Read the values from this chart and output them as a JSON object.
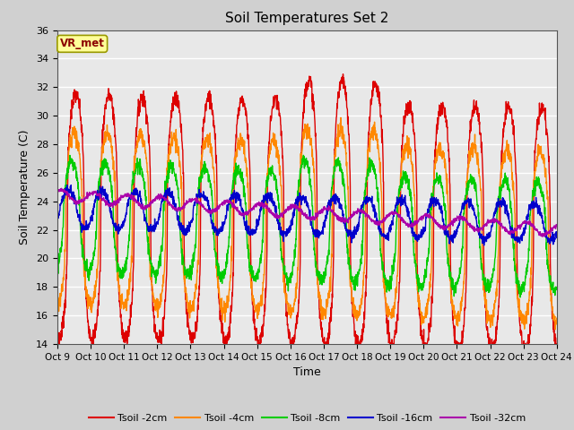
{
  "title": "Soil Temperatures Set 2",
  "xlabel": "Time",
  "ylabel": "Soil Temperature (C)",
  "ylim": [
    14,
    36
  ],
  "yticks": [
    14,
    16,
    18,
    20,
    22,
    24,
    26,
    28,
    30,
    32,
    34,
    36
  ],
  "xtick_labels": [
    "Oct 9",
    "Oct 10",
    "Oct 11",
    "Oct 12",
    "Oct 13",
    "Oct 14",
    "Oct 15",
    "Oct 16",
    "Oct 17",
    "Oct 18",
    "Oct 19",
    "Oct 20",
    "Oct 21",
    "Oct 22",
    "Oct 23",
    "Oct 24"
  ],
  "colors": {
    "Tsoil -2cm": "#dd0000",
    "Tsoil -4cm": "#ff8800",
    "Tsoil -8cm": "#00cc00",
    "Tsoil -16cm": "#0000cc",
    "Tsoil -32cm": "#aa00aa"
  },
  "fig_facecolor": "#d0d0d0",
  "ax_facecolor": "#e8e8e8",
  "annotation_text": "VR_met",
  "annotation_box_color": "#ffff99",
  "annotation_text_color": "#8b0000",
  "annotation_edge_color": "#999900",
  "grid_color": "#ffffff",
  "n_days": 15,
  "points_per_day": 144
}
